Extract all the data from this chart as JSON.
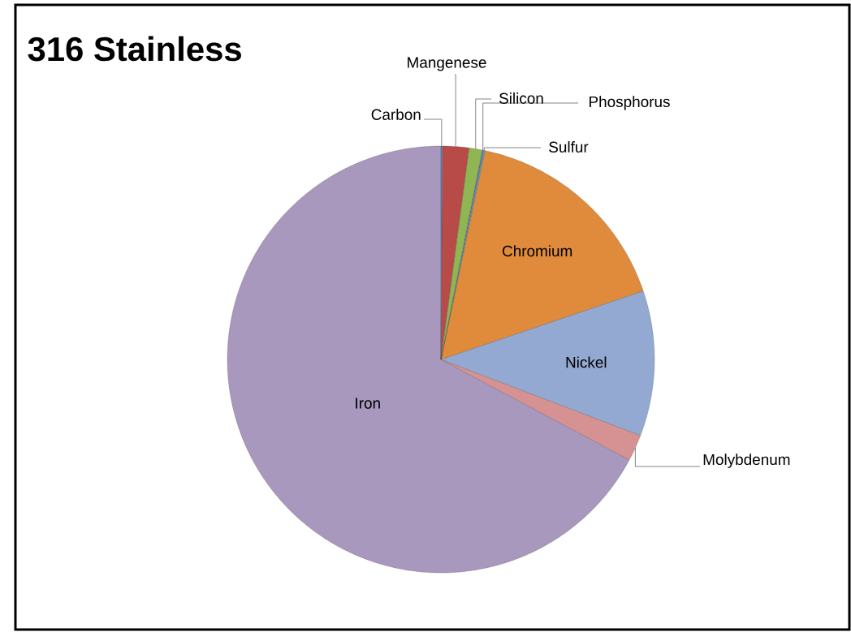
{
  "chart_data": {
    "type": "pie",
    "title": "316 Stainless",
    "categories": [
      "Carbon",
      "Mangenese",
      "Silicon",
      "Phosphorus",
      "Sulfur",
      "Chromium",
      "Nickel",
      "Molybdenum",
      "Iron"
    ],
    "values": [
      0.1,
      2,
      1,
      0.1,
      0.1,
      16.5,
      11,
      2,
      67.2
    ],
    "colors": [
      "#4f81bd",
      "#b84a47",
      "#8fb652",
      "#8064a2",
      "#4bacc6",
      "#e08a3c",
      "#94a9d1",
      "#d69292",
      "#a898be"
    ]
  }
}
